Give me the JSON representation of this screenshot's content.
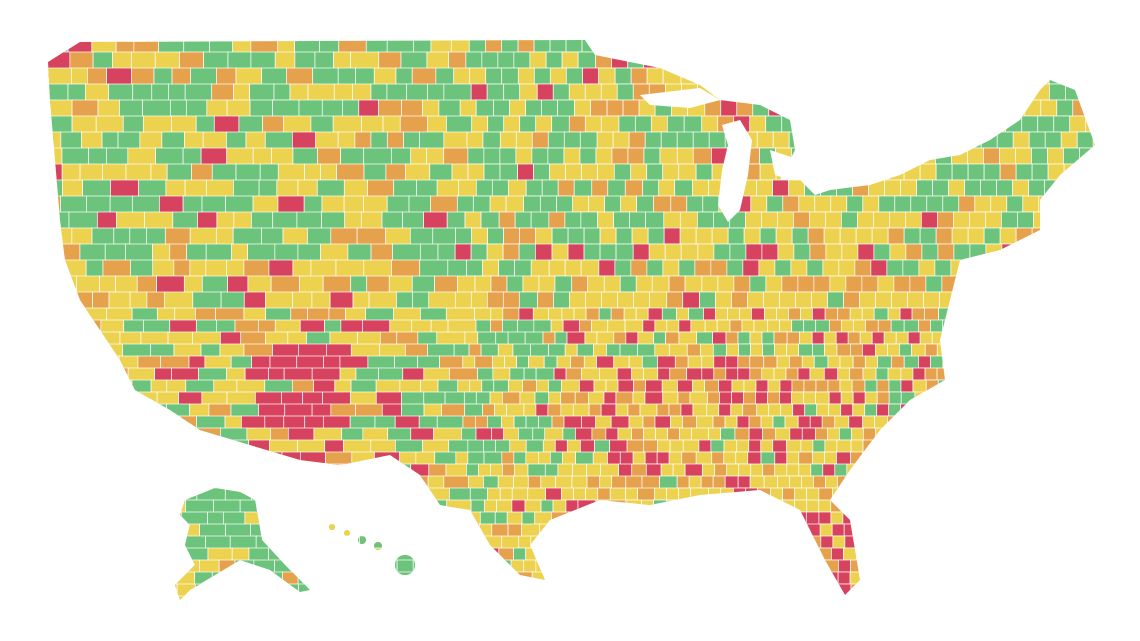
{
  "map": {
    "colors": [
      "#6cc47c",
      "#ecd24f",
      "#e6a14c",
      "#d7435f"
    ]
  }
}
